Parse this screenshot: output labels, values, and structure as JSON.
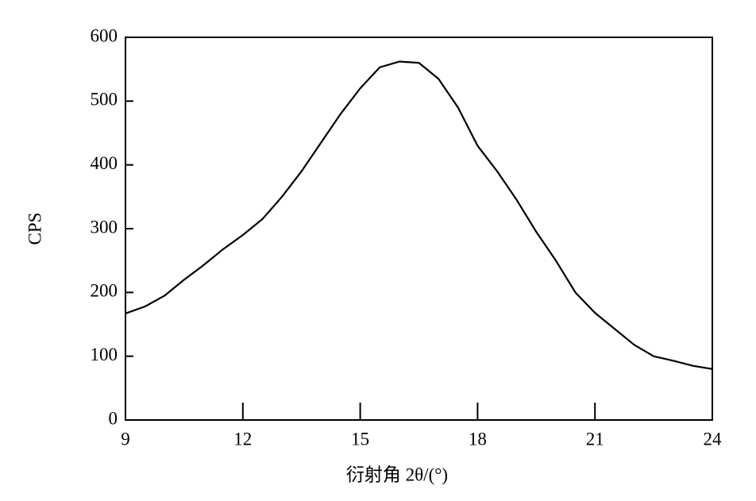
{
  "chart_data": {
    "type": "line",
    "x_label": "衍射角 2θ/(°)",
    "y_label": "CPS",
    "x": [
      9,
      9.5,
      10,
      10.5,
      11,
      11.5,
      12,
      12.5,
      13,
      13.5,
      14,
      14.5,
      15,
      15.5,
      16,
      16.5,
      17,
      17.5,
      18,
      18.5,
      19,
      19.5,
      20,
      20.5,
      21,
      21.5,
      22,
      22.5,
      23,
      23.5,
      24
    ],
    "series": [
      {
        "color": "#000000",
        "values": [
          167,
          178,
          195,
          220,
          243,
          268,
          290,
          315,
          350,
          390,
          435,
          480,
          520,
          553,
          562,
          560,
          535,
          490,
          430,
          390,
          345,
          295,
          250,
          200,
          168,
          143,
          118,
          100,
          93,
          85,
          80
        ]
      }
    ],
    "xlim": [
      9,
      24
    ],
    "xticks": [
      9,
      12,
      15,
      18,
      21,
      24
    ],
    "ylim": [
      0,
      600
    ],
    "yticks": [
      0,
      100,
      200,
      300,
      400,
      500,
      600
    ]
  }
}
